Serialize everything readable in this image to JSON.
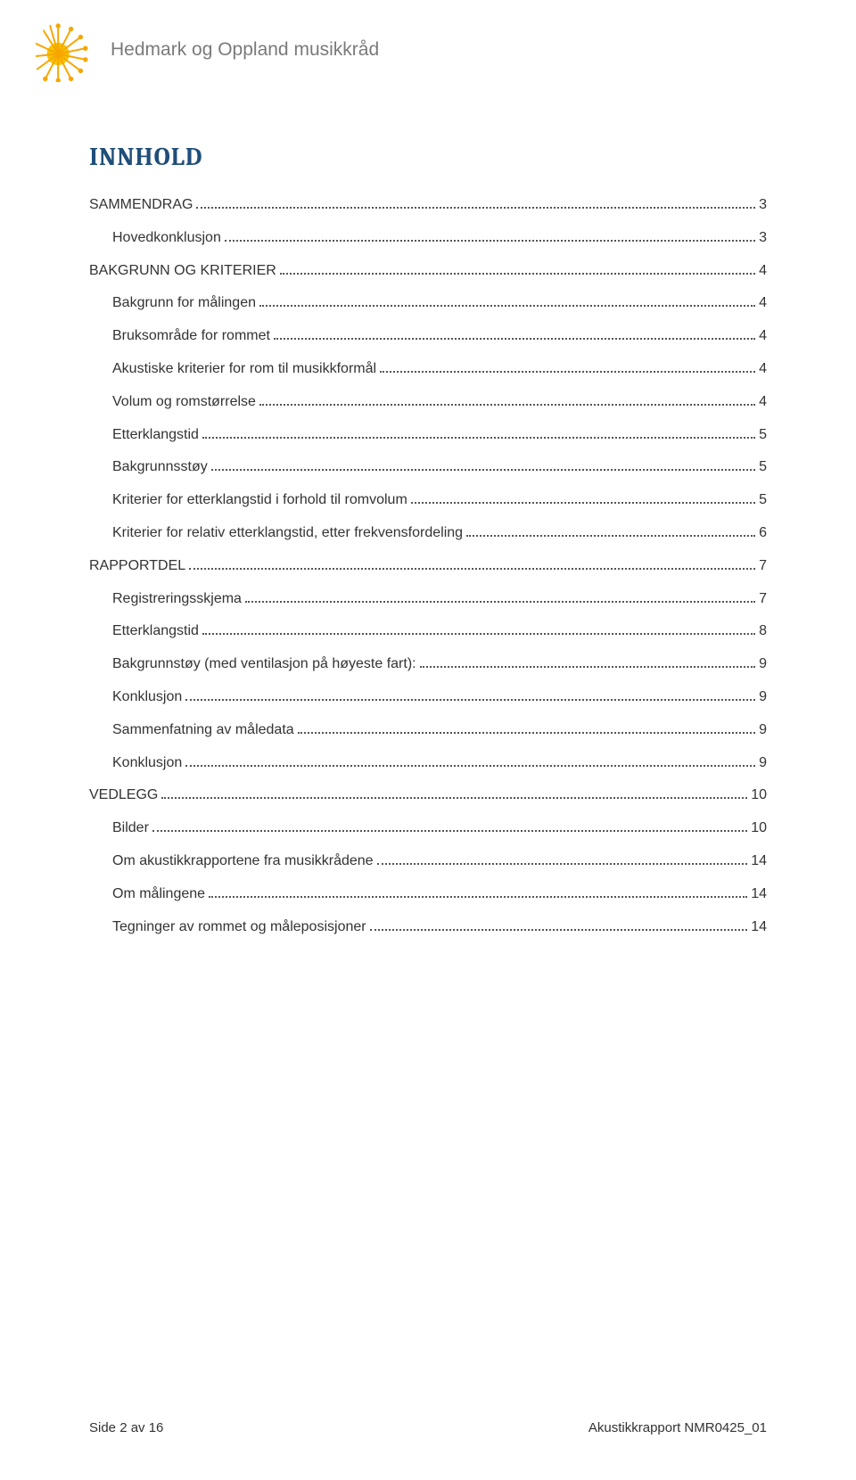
{
  "header": {
    "org_name": "Hedmark og Oppland musikkråd"
  },
  "toc": {
    "title": "INNHOLD",
    "entries": [
      {
        "label": "SAMMENDRAG",
        "page": "3",
        "level": 1
      },
      {
        "label": "Hovedkonklusjon",
        "page": "3",
        "level": 2
      },
      {
        "label": "BAKGRUNN OG KRITERIER",
        "page": "4",
        "level": 1
      },
      {
        "label": "Bakgrunn for målingen",
        "page": "4",
        "level": 2
      },
      {
        "label": "Bruksområde for rommet",
        "page": "4",
        "level": 2
      },
      {
        "label": "Akustiske kriterier for rom til musikkformål",
        "page": "4",
        "level": 2
      },
      {
        "label": "Volum og romstørrelse",
        "page": "4",
        "level": 2
      },
      {
        "label": "Etterklangstid",
        "page": "5",
        "level": 2
      },
      {
        "label": "Bakgrunnsstøy",
        "page": "5",
        "level": 2
      },
      {
        "label": "Kriterier for etterklangstid i forhold til romvolum",
        "page": "5",
        "level": 2
      },
      {
        "label": "Kriterier for relativ etterklangstid, etter frekvensfordeling",
        "page": "6",
        "level": 2
      },
      {
        "label": "RAPPORTDEL",
        "page": "7",
        "level": 1
      },
      {
        "label": "Registreringsskjema",
        "page": "7",
        "level": 2
      },
      {
        "label": "Etterklangstid",
        "page": "8",
        "level": 2
      },
      {
        "label": "Bakgrunnstøy (med ventilasjon på høyeste fart):",
        "page": "9",
        "level": 2
      },
      {
        "label": "Konklusjon",
        "page": "9",
        "level": 2
      },
      {
        "label": "Sammenfatning av måledata",
        "page": "9",
        "level": 2
      },
      {
        "label": "Konklusjon",
        "page": "9",
        "level": 2
      },
      {
        "label": "VEDLEGG",
        "page": "10",
        "level": 1
      },
      {
        "label": "Bilder",
        "page": "10",
        "level": 2
      },
      {
        "label": "Om akustikkrapportene fra musikkrådene",
        "page": "14",
        "level": 2
      },
      {
        "label": "Om målingene",
        "page": "14",
        "level": 2
      },
      {
        "label": "Tegninger av rommet og måleposisjoner",
        "page": "14",
        "level": 2
      }
    ]
  },
  "footer": {
    "left": "Side 2 av 16",
    "right": "Akustikkrapport NMR0425_01"
  },
  "colors": {
    "title_color": "#1f4e79",
    "text_color": "#333333",
    "org_name_color": "#7a7a7a",
    "logo_orange": "#f7a600",
    "logo_yellow": "#f4c400"
  }
}
